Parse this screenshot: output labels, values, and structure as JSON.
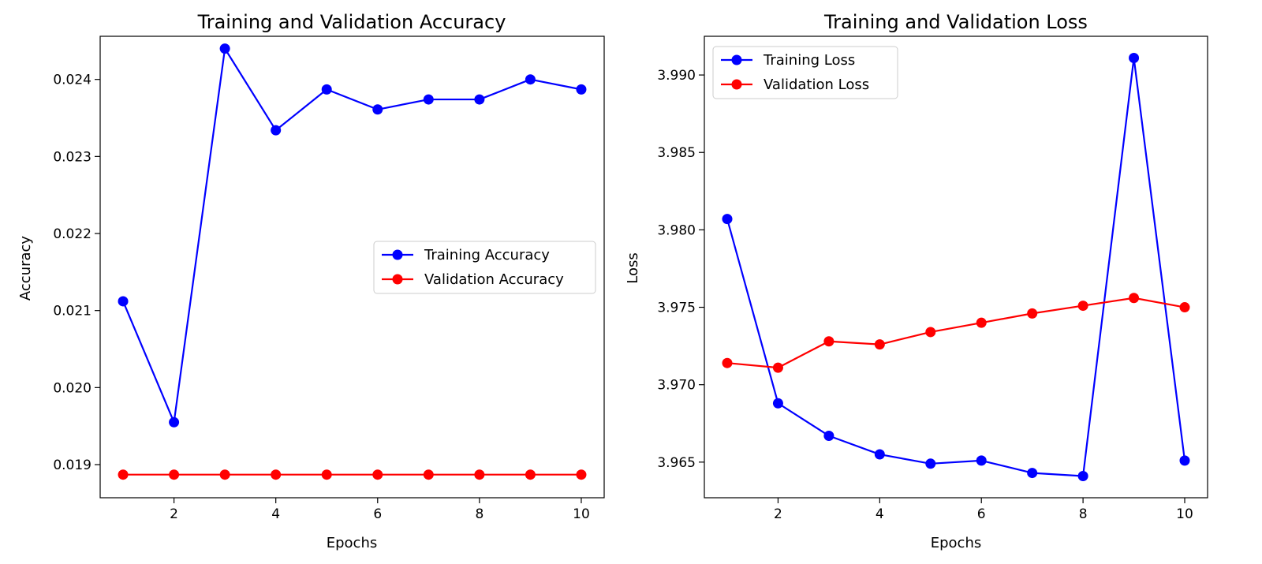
{
  "chart_data": [
    {
      "type": "line",
      "title": "Training and Validation Accuracy",
      "xlabel": "Epochs",
      "ylabel": "Accuracy",
      "xlim": [
        0.55,
        10.45
      ],
      "ylim": [
        0.01857,
        0.02456
      ],
      "xticks": [
        2,
        4,
        6,
        8,
        10
      ],
      "xtick_labels": [
        "2",
        "4",
        "6",
        "8",
        "10"
      ],
      "yticks": [
        0.019,
        0.02,
        0.021,
        0.022,
        0.023,
        0.024
      ],
      "ytick_labels": [
        "0.019",
        "0.020",
        "0.021",
        "0.022",
        "0.023",
        "0.024"
      ],
      "legend_position": "center-right",
      "grid": false,
      "x": [
        1,
        2,
        3,
        4,
        5,
        6,
        7,
        8,
        9,
        10
      ],
      "series": [
        {
          "name": "Training Accuracy",
          "color": "#0000ff",
          "marker": "circle",
          "values": [
            0.02112,
            0.01955,
            0.0244,
            0.02334,
            0.02387,
            0.02361,
            0.02374,
            0.02374,
            0.024,
            0.02387
          ]
        },
        {
          "name": "Validation Accuracy",
          "color": "#ff0000",
          "marker": "circle",
          "values": [
            0.01887,
            0.01887,
            0.01887,
            0.01887,
            0.01887,
            0.01887,
            0.01887,
            0.01887,
            0.01887,
            0.01887
          ]
        }
      ]
    },
    {
      "type": "line",
      "title": "Training and Validation Loss",
      "xlabel": "Epochs",
      "ylabel": "Loss",
      "xlim": [
        0.55,
        10.45
      ],
      "ylim": [
        3.9627,
        3.9925
      ],
      "xticks": [
        2,
        4,
        6,
        8,
        10
      ],
      "xtick_labels": [
        "2",
        "4",
        "6",
        "8",
        "10"
      ],
      "yticks": [
        3.965,
        3.97,
        3.975,
        3.98,
        3.985,
        3.99
      ],
      "ytick_labels": [
        "3.965",
        "3.970",
        "3.975",
        "3.980",
        "3.985",
        "3.990"
      ],
      "legend_position": "upper-left",
      "grid": false,
      "x": [
        1,
        2,
        3,
        4,
        5,
        6,
        7,
        8,
        9,
        10
      ],
      "series": [
        {
          "name": "Training Loss",
          "color": "#0000ff",
          "marker": "circle",
          "values": [
            3.9807,
            3.9688,
            3.9667,
            3.9655,
            3.9649,
            3.9651,
            3.9643,
            3.9641,
            3.9911,
            3.9651
          ]
        },
        {
          "name": "Validation Loss",
          "color": "#ff0000",
          "marker": "circle",
          "values": [
            3.9714,
            3.9711,
            3.9728,
            3.9726,
            3.9734,
            3.974,
            3.9746,
            3.9751,
            3.9756,
            3.975
          ]
        }
      ]
    }
  ]
}
